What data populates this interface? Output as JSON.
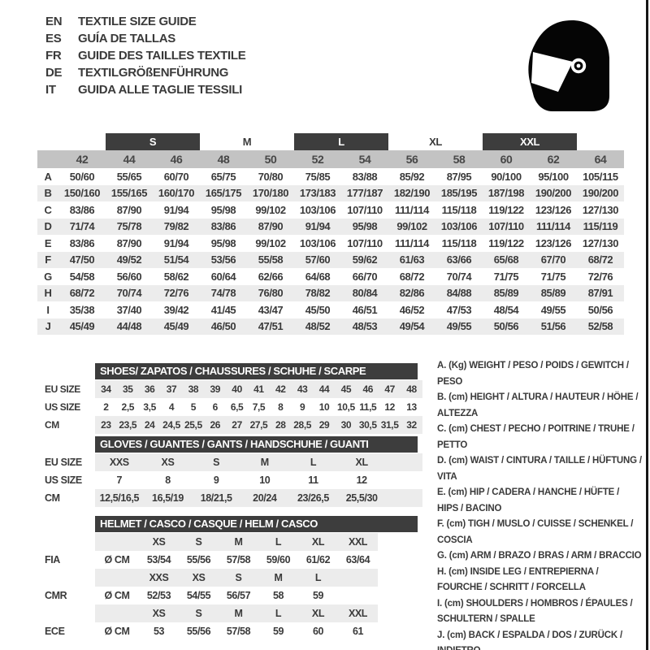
{
  "colors": {
    "header_dark": "#3d3d3d",
    "size_band_grey": "#c3c3c3",
    "stripe_grey": "#ececec",
    "text": "#3a3a3a"
  },
  "header": {
    "languages": [
      {
        "code": "EN",
        "title": "TEXTILE SIZE GUIDE"
      },
      {
        "code": "ES",
        "title": "GUÍA DE TALLAS"
      },
      {
        "code": "FR",
        "title": "GUIDE DES TAILLES TEXTILE"
      },
      {
        "code": "DE",
        "title": "TEXTILGRÖßENFÜHRUNG"
      },
      {
        "code": "IT",
        "title": "GUIDA ALLE TAGLIE TESSILI"
      }
    ],
    "logo_icon": "racing-helmet-icon"
  },
  "textile_table": {
    "group_labels": [
      {
        "label": "S",
        "boxed": true
      },
      {
        "label": "M",
        "boxed": false
      },
      {
        "label": "L",
        "boxed": true
      },
      {
        "label": "XL",
        "boxed": false
      },
      {
        "label": "XXL",
        "boxed": true
      }
    ],
    "sizes": [
      "42",
      "44",
      "46",
      "48",
      "50",
      "52",
      "54",
      "56",
      "58",
      "60",
      "62",
      "64"
    ],
    "rows": [
      {
        "letter": "A",
        "values": [
          "50/60",
          "55/65",
          "60/70",
          "65/75",
          "70/80",
          "75/85",
          "83/88",
          "85/92",
          "87/95",
          "90/100",
          "95/100",
          "105/115"
        ]
      },
      {
        "letter": "B",
        "values": [
          "150/160",
          "155/165",
          "160/170",
          "165/175",
          "170/180",
          "173/183",
          "177/187",
          "182/190",
          "185/195",
          "187/198",
          "190/200",
          "190/200"
        ]
      },
      {
        "letter": "C",
        "values": [
          "83/86",
          "87/90",
          "91/94",
          "95/98",
          "99/102",
          "103/106",
          "107/110",
          "111/114",
          "115/118",
          "119/122",
          "123/126",
          "127/130"
        ]
      },
      {
        "letter": "D",
        "values": [
          "71/74",
          "75/78",
          "79/82",
          "83/86",
          "87/90",
          "91/94",
          "95/98",
          "99/102",
          "103/106",
          "107/110",
          "111/114",
          "115/119"
        ]
      },
      {
        "letter": "E",
        "values": [
          "83/86",
          "87/90",
          "91/94",
          "95/98",
          "99/102",
          "103/106",
          "107/110",
          "111/114",
          "115/118",
          "119/122",
          "123/126",
          "127/130"
        ]
      },
      {
        "letter": "F",
        "values": [
          "47/50",
          "49/52",
          "51/54",
          "53/56",
          "55/58",
          "57/60",
          "59/62",
          "61/63",
          "63/66",
          "65/68",
          "67/70",
          "68/72"
        ]
      },
      {
        "letter": "G",
        "values": [
          "54/58",
          "56/60",
          "58/62",
          "60/64",
          "62/66",
          "64/68",
          "66/70",
          "68/72",
          "70/74",
          "71/75",
          "71/75",
          "72/76"
        ]
      },
      {
        "letter": "H",
        "values": [
          "68/72",
          "70/74",
          "72/76",
          "74/78",
          "76/80",
          "78/82",
          "80/84",
          "82/86",
          "84/88",
          "85/89",
          "85/89",
          "87/91"
        ]
      },
      {
        "letter": "I",
        "values": [
          "35/38",
          "37/40",
          "39/42",
          "41/45",
          "43/47",
          "45/50",
          "46/51",
          "46/52",
          "47/53",
          "48/54",
          "49/55",
          "50/56"
        ]
      },
      {
        "letter": "J",
        "values": [
          "45/49",
          "44/48",
          "45/49",
          "46/50",
          "47/51",
          "48/52",
          "48/53",
          "49/54",
          "49/55",
          "50/56",
          "51/56",
          "52/58"
        ]
      }
    ]
  },
  "shoes": {
    "title": "SHOES/ ZAPATOS / CHAUSSURES / SCHUHE / SCARPE",
    "row_labels": [
      "EU SIZE",
      "US SIZE",
      "CM"
    ],
    "eu": [
      "34",
      "35",
      "36",
      "37",
      "38",
      "39",
      "40",
      "41",
      "42",
      "43",
      "44",
      "45",
      "46",
      "47",
      "48"
    ],
    "us": [
      "2",
      "2,5",
      "3,5",
      "4",
      "5",
      "6",
      "6,5",
      "7,5",
      "8",
      "9",
      "10",
      "10,5",
      "11,5",
      "12",
      "13"
    ],
    "cm": [
      "23",
      "23,5",
      "24",
      "24,5",
      "25,5",
      "26",
      "27",
      "27,5",
      "28",
      "28,5",
      "29",
      "30",
      "30,5",
      "31,5",
      "32"
    ]
  },
  "gloves": {
    "title": "GLOVES / GUANTES / GANTS / HANDSCHUHE / GUANTI",
    "row_labels": [
      "EU SIZE",
      "US SIZE",
      "CM"
    ],
    "eu": [
      "XXS",
      "XS",
      "S",
      "M",
      "L",
      "XL"
    ],
    "us": [
      "7",
      "8",
      "9",
      "10",
      "11",
      "12"
    ],
    "cm": [
      "12,5/16,5",
      "16,5/19",
      "18/21,5",
      "20/24",
      "23/26,5",
      "25,5/30"
    ]
  },
  "helmet": {
    "title": "HELMET / CASCO / CASQUE / HELM / CASCO",
    "diameter_label": "Ø CM",
    "rows": [
      {
        "type": "sizes",
        "label": "",
        "cells": [
          "XS",
          "S",
          "M",
          "L",
          "XL",
          "XXL"
        ]
      },
      {
        "type": "values",
        "label": "FIA",
        "cells": [
          "53/54",
          "55/56",
          "57/58",
          "59/60",
          "61/62",
          "63/64"
        ]
      },
      {
        "type": "sizes",
        "label": "",
        "cells": [
          "XXS",
          "XS",
          "S",
          "M",
          "L",
          ""
        ]
      },
      {
        "type": "values",
        "label": "CMR",
        "cells": [
          "52/53",
          "54/55",
          "56/57",
          "58",
          "59",
          ""
        ]
      },
      {
        "type": "sizes",
        "label": "",
        "cells": [
          "XS",
          "S",
          "M",
          "L",
          "XL",
          "XXL"
        ]
      },
      {
        "type": "values",
        "label": "ECE",
        "cells": [
          "53",
          "55/56",
          "57/58",
          "59",
          "60",
          "61"
        ]
      }
    ]
  },
  "legend": {
    "items": [
      "A. (Kg) WEIGHT / PESO / POIDS / GEWITCH / PESO",
      "B. (cm) HEIGHT / ALTURA / HAUTEUR / HÖHE / ALTEZZA",
      "C. (cm) CHEST / PECHO / POITRINE / TRUHE / PETTO",
      "D. (cm) WAIST / CINTURA / TAILLE / HÜFTUNG / VITA",
      "E. (cm) HIP / CADERA / HANCHE / HÜFTE / HIPS /  BACINO",
      "F. (cm) TIGH / MUSLO / CUISSE / SCHENKEL / COSCIA",
      "G. (cm) ARM  / BRAZO / BRAS / ARM / BRACCIO",
      "H. (cm) INSIDE LEG / ENTREPIERNA / FOURCHE / SCHRITT / FORCELLA",
      "I.  (cm) SHOULDERS / HOMBROS / ÉPAULES / SCHULTERN / SPALLE",
      "J. (cm) BACK / ESPALDA / DOS / ZURÜCK / INDIETRO"
    ]
  }
}
